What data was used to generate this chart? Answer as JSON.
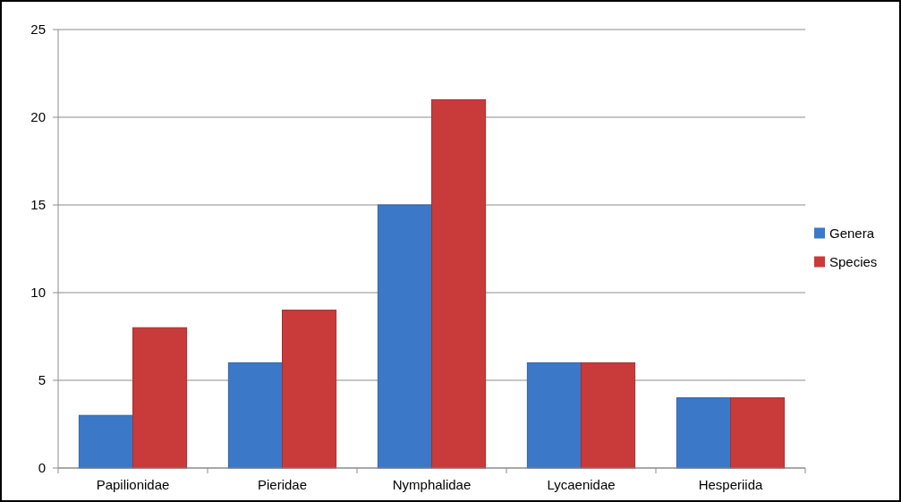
{
  "chart_data": {
    "type": "bar",
    "categories": [
      "Papilionidae",
      "Pieridae",
      "Nymphalidae",
      "Lycaenidae",
      "Hesperiida"
    ],
    "series": [
      {
        "name": "Genera",
        "color": "#3b78c8",
        "values": [
          3,
          6,
          15,
          6,
          4
        ]
      },
      {
        "name": "Species",
        "color": "#c93a3a",
        "values": [
          8,
          9,
          21,
          6,
          4
        ]
      }
    ],
    "ylim": [
      0,
      25
    ],
    "yticks": [
      0,
      5,
      10,
      15,
      20,
      25
    ],
    "grid": "y",
    "legend": "right"
  }
}
